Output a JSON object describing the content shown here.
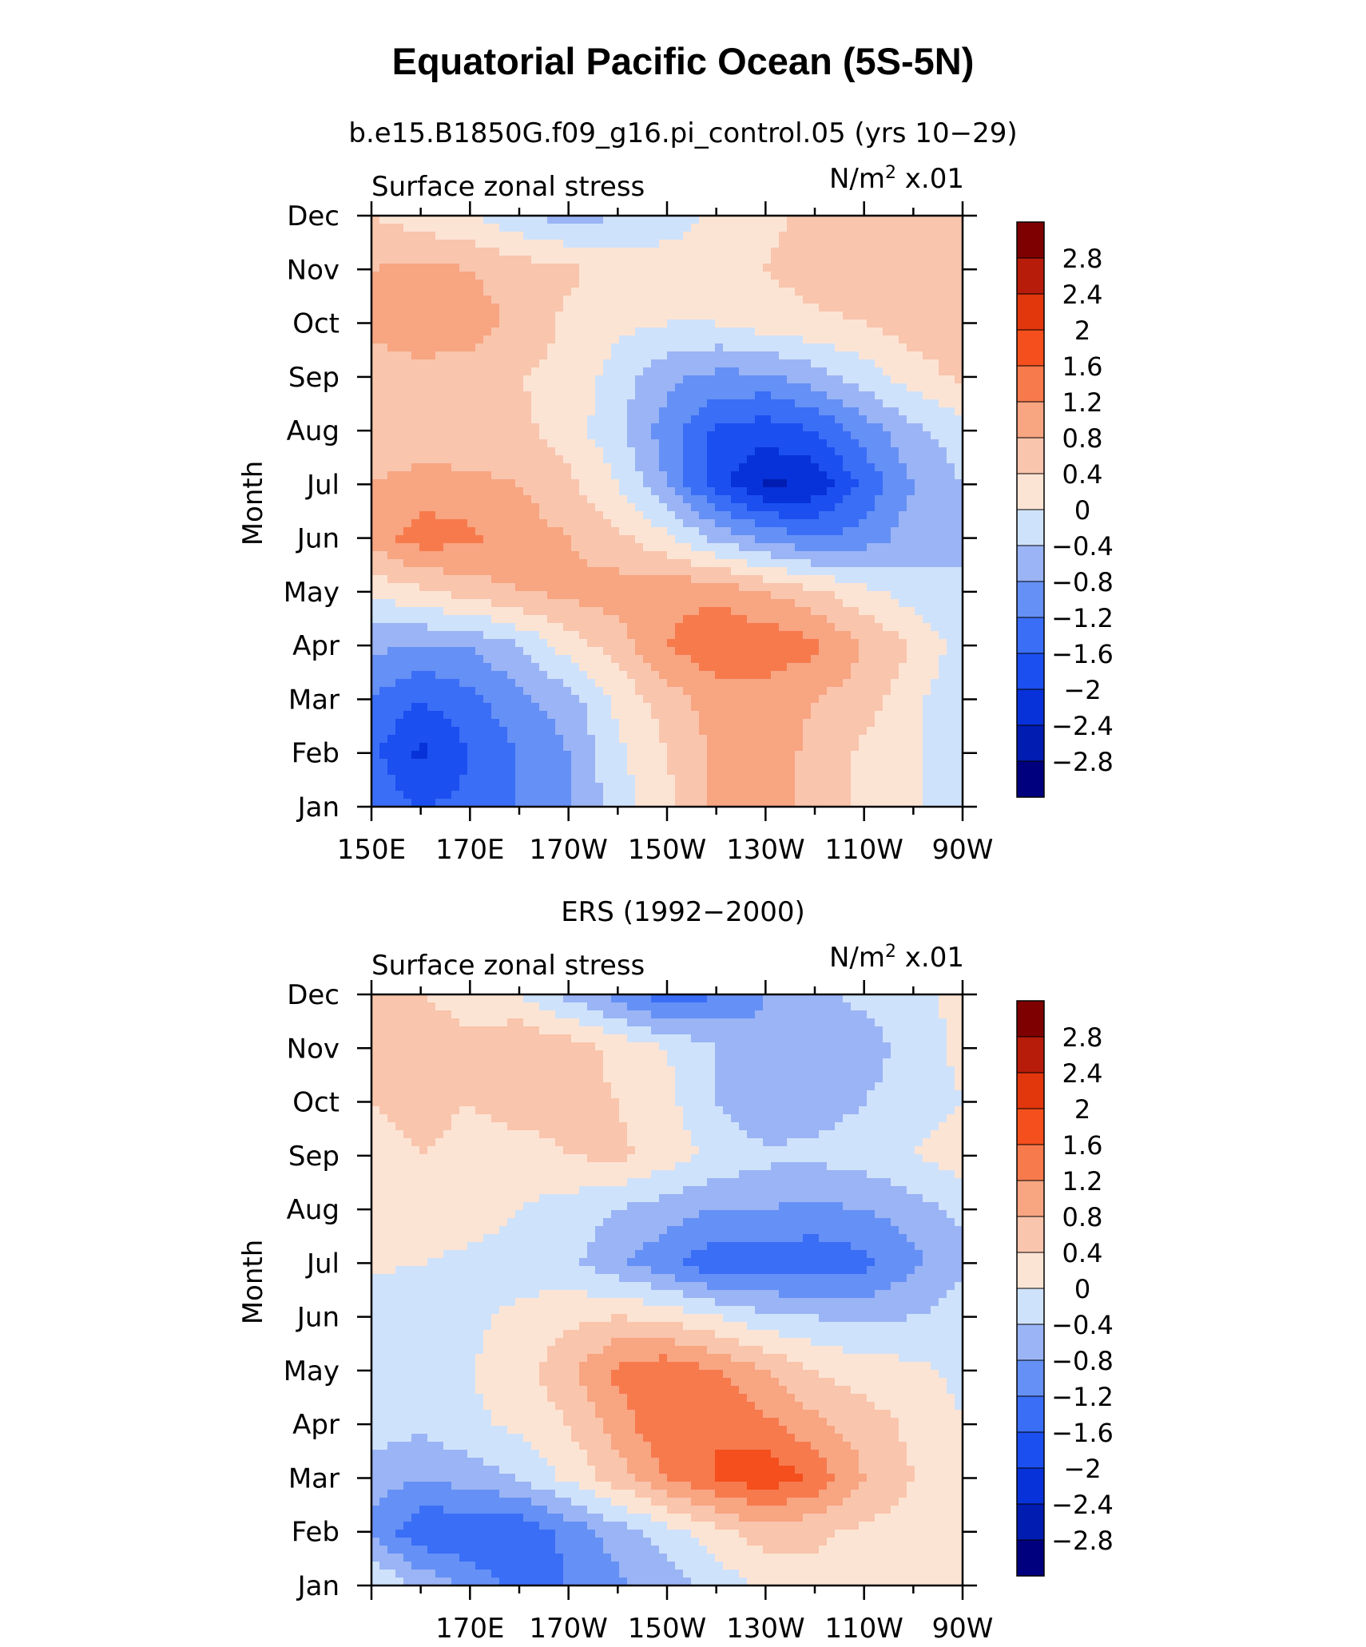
{
  "figure": {
    "title": "Equatorial Pacific Ocean (5S-5N)",
    "panel_titles": [
      "b.e15.B1850G.f09_g16.pi_control.05 (yrs 10−29)",
      "ERS (1992−2000)"
    ]
  },
  "chart_data": [
    {
      "type": "heatmap",
      "title": "b.e15.B1850G.f09_g16.pi_control.05 (yrs 10−29)",
      "left_label": "Surface zonal stress",
      "right_label": "N/m² x.01",
      "units_prefix": "N/m",
      "units_sup": "2",
      "units_suffix": " x.01",
      "ylabel": "Month",
      "x_ticks": [
        "150E",
        "170E",
        "170W",
        "150W",
        "130W",
        "110W",
        "90W"
      ],
      "y_ticks": [
        "Jan",
        "Feb",
        "Mar",
        "Apr",
        "May",
        "Jun",
        "Jul",
        "Aug",
        "Sep",
        "Oct",
        "Nov",
        "Dec"
      ],
      "levels": [
        -2.8,
        -2.4,
        -2,
        -1.6,
        -1.2,
        -0.8,
        -0.4,
        0,
        0.4,
        0.8,
        1.2,
        1.6,
        2,
        2.4,
        2.8
      ],
      "colorbar_labels": [
        "2.8",
        "2.4",
        "2",
        "1.6",
        "1.2",
        "0.8",
        "0.4",
        "0",
        "−0.4",
        "−0.8",
        "−1.2",
        "−1.6",
        "−2",
        "−2.4",
        "−2.8"
      ],
      "colors": [
        "#00007f",
        "#001cb1",
        "#0832d9",
        "#1b4ff0",
        "#3a6ef6",
        "#6590f5",
        "#9ab4f5",
        "#cfe2fb",
        "#fce4d4",
        "#f9c5ad",
        "#f8a582",
        "#f77a4d",
        "#f44f1c",
        "#e2360d",
        "#b71c0a",
        "#7f0000"
      ],
      "lon_axis": [
        150,
        160,
        170,
        180,
        190,
        200,
        210,
        220,
        230,
        240,
        250,
        260,
        270
      ],
      "months_axis": [
        "Jan",
        "Feb",
        "Mar",
        "Apr",
        "May",
        "Jun",
        "Jul",
        "Aug",
        "Sep",
        "Oct",
        "Nov",
        "Dec"
      ],
      "grid": [
        [
          -1.3,
          -1.6,
          -1.5,
          -1.2,
          -0.8,
          -0.2,
          0.3,
          0.9,
          0.9,
          0.7,
          0.3,
          0.1,
          -0.3
        ],
        [
          -1.5,
          -2.1,
          -1.6,
          -1.2,
          -0.8,
          -0.1,
          0.4,
          0.9,
          1.0,
          0.7,
          0.3,
          0.1,
          -0.3
        ],
        [
          -1.2,
          -1.6,
          -1.3,
          -0.9,
          -0.6,
          0.1,
          0.6,
          1.0,
          1.0,
          0.8,
          0.6,
          0.1,
          -0.3
        ],
        [
          -0.7,
          -0.8,
          -0.8,
          -0.4,
          0.2,
          0.6,
          1.2,
          1.5,
          1.5,
          1.3,
          0.8,
          0.4,
          -0.2
        ],
        [
          0.1,
          0.3,
          0.6,
          0.8,
          0.9,
          1.0,
          1.1,
          1.1,
          0.8,
          0.5,
          0.1,
          -0.2,
          -0.4
        ],
        [
          1.0,
          1.4,
          1.3,
          1.0,
          0.8,
          0.5,
          0.1,
          -0.5,
          -0.9,
          -1.2,
          -1.0,
          -0.6,
          -0.4
        ],
        [
          0.8,
          1.0,
          0.9,
          0.8,
          0.5,
          0.0,
          -0.8,
          -1.8,
          -2.5,
          -2.3,
          -1.5,
          -0.8,
          -0.4
        ],
        [
          0.4,
          0.5,
          0.5,
          0.5,
          0.2,
          -0.3,
          -1.0,
          -1.7,
          -1.8,
          -1.6,
          -1.0,
          -0.5,
          -0.2
        ],
        [
          0.6,
          0.7,
          0.6,
          0.4,
          0.3,
          -0.2,
          -0.7,
          -0.9,
          -0.9,
          -0.6,
          -0.2,
          0.2,
          0.5
        ],
        [
          0.9,
          1.0,
          1.0,
          0.7,
          0.3,
          0.1,
          0.0,
          0.0,
          0.2,
          0.3,
          0.4,
          0.6,
          0.6
        ],
        [
          0.8,
          0.9,
          0.8,
          0.6,
          0.5,
          0.2,
          0.2,
          0.1,
          0.4,
          0.6,
          0.7,
          0.7,
          0.6
        ],
        [
          0.4,
          0.2,
          0.0,
          -0.3,
          -0.6,
          -0.4,
          -0.2,
          0.1,
          0.3,
          0.5,
          0.6,
          0.7,
          0.5
        ]
      ]
    },
    {
      "type": "heatmap",
      "title": "ERS (1992−2000)",
      "left_label": "Surface zonal stress",
      "right_label": "N/m² x.01",
      "units_prefix": "N/m",
      "units_sup": "2",
      "units_suffix": " x.01",
      "ylabel": "Month",
      "x_ticks": [
        "170E",
        "170W",
        "150W",
        "130W",
        "110W",
        "90W"
      ],
      "y_ticks": [
        "Jan",
        "Feb",
        "Mar",
        "Apr",
        "May",
        "Jun",
        "Jul",
        "Aug",
        "Sep",
        "Oct",
        "Nov",
        "Dec"
      ],
      "levels": [
        -2.8,
        -2.4,
        -2,
        -1.6,
        -1.2,
        -0.8,
        -0.4,
        0,
        0.4,
        0.8,
        1.2,
        1.6,
        2,
        2.4,
        2.8
      ],
      "colorbar_labels": [
        "2.8",
        "2.4",
        "2",
        "1.6",
        "1.2",
        "0.8",
        "0.4",
        "0",
        "−0.4",
        "−0.8",
        "−1.2",
        "−1.6",
        "−2",
        "−2.4",
        "−2.8"
      ],
      "colors": [
        "#00007f",
        "#001cb1",
        "#0832d9",
        "#1b4ff0",
        "#3a6ef6",
        "#6590f5",
        "#9ab4f5",
        "#cfe2fb",
        "#fce4d4",
        "#f9c5ad",
        "#f8a582",
        "#f77a4d",
        "#f44f1c",
        "#e2360d",
        "#b71c0a",
        "#7f0000"
      ],
      "lon_axis": [
        150,
        160,
        170,
        180,
        190,
        200,
        210,
        220,
        230,
        240,
        250,
        260,
        270
      ],
      "months_axis": [
        "Jan",
        "Feb",
        "Mar",
        "Apr",
        "May",
        "Jun",
        "Jul",
        "Aug",
        "Sep",
        "Oct",
        "Nov",
        "Dec"
      ],
      "grid": [
        [
          0.1,
          -0.5,
          -0.9,
          -1.4,
          -1.2,
          -0.9,
          -0.6,
          -0.3,
          0.1,
          0.2,
          0.3,
          0.3,
          0.3
        ],
        [
          -0.9,
          -1.5,
          -1.6,
          -1.5,
          -1.1,
          -0.6,
          -0.2,
          0.3,
          0.6,
          0.5,
          0.3,
          0.2,
          0.1
        ],
        [
          -0.6,
          -0.8,
          -0.6,
          -0.4,
          0.1,
          0.6,
          1.2,
          1.6,
          1.9,
          1.5,
          0.8,
          0.4,
          0.1
        ],
        [
          -0.2,
          -0.3,
          -0.1,
          0.1,
          0.4,
          1.0,
          1.6,
          1.6,
          1.3,
          0.9,
          0.6,
          0.3,
          0.0
        ],
        [
          -0.2,
          -0.2,
          0.0,
          0.2,
          0.7,
          1.3,
          1.5,
          1.2,
          0.8,
          0.4,
          0.2,
          0.1,
          -0.1
        ],
        [
          -0.3,
          -0.4,
          -0.1,
          0.1,
          0.3,
          0.4,
          0.3,
          0.0,
          -0.3,
          -0.4,
          -0.5,
          -0.4,
          -0.2
        ],
        [
          0.1,
          0.0,
          -0.1,
          -0.2,
          -0.3,
          -0.7,
          -1.1,
          -1.5,
          -1.4,
          -1.5,
          -1.3,
          -0.9,
          -0.5
        ],
        [
          0.2,
          0.3,
          0.2,
          0.0,
          -0.2,
          -0.4,
          -0.6,
          -0.8,
          -0.8,
          -0.9,
          -0.8,
          -0.6,
          -0.3
        ],
        [
          0.3,
          0.4,
          0.3,
          0.3,
          0.4,
          0.5,
          0.2,
          -0.1,
          -0.3,
          -0.3,
          -0.2,
          0.0,
          0.2
        ],
        [
          0.4,
          0.5,
          0.4,
          0.5,
          0.5,
          0.4,
          0.1,
          -0.4,
          -0.8,
          -0.6,
          -0.4,
          -0.2,
          0.0
        ],
        [
          0.6,
          0.7,
          0.5,
          0.8,
          0.6,
          0.3,
          0.0,
          -0.4,
          -0.7,
          -0.6,
          -0.6,
          -0.2,
          0.1
        ],
        [
          0.5,
          0.4,
          0.2,
          0.0,
          -0.5,
          -1.0,
          -1.5,
          -1.2,
          -0.8,
          -0.5,
          -0.3,
          -0.1,
          0.1
        ]
      ]
    }
  ]
}
